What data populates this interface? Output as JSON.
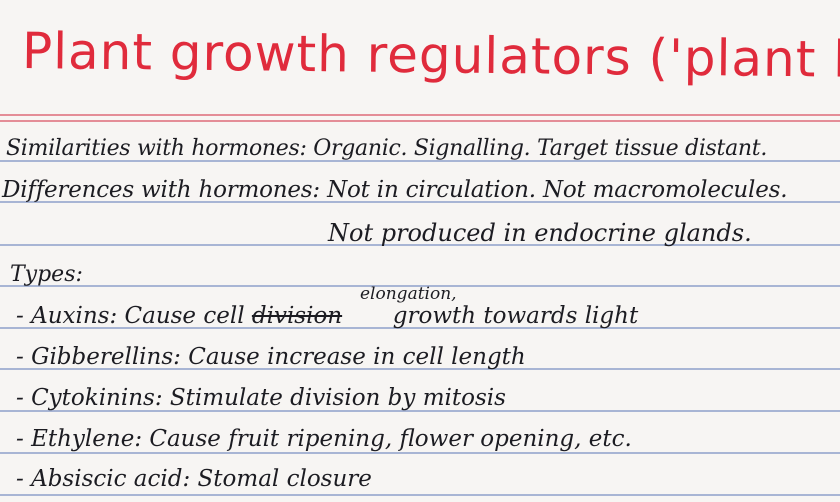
{
  "title": "Plant growth regulators ('plant hormones')",
  "similarities": "Similarities with hormones: Organic. Signalling. Target tissue distant.",
  "differences": "Differences with hormones: Not in circulation. Not macromolecules.",
  "differences_cont": "Not produced in endocrine glands.",
  "types_heading": "Types:",
  "items": [
    {
      "prefix": "- Auxins: Cause cell",
      "struck": "division",
      "inserted": "elongation,",
      "suffix": "growth towards light"
    },
    {
      "text": "- Gibberellins: Cause increase in cell length"
    },
    {
      "text": "- Cytokinins: Stimulate division by mitosis"
    },
    {
      "text": "- Ethylene: Cause fruit ripening, flower opening, etc."
    },
    {
      "text": "- Absiscic acid: Stomal closure"
    }
  ]
}
